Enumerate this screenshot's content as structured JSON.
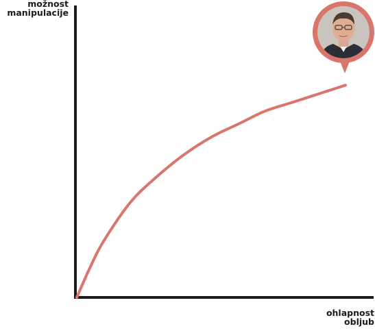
{
  "chart_data": {
    "type": "line",
    "title": "",
    "ylabel": [
      "možnost",
      "manipulacije"
    ],
    "xlabel": [
      "ohlapnost",
      "obljub"
    ],
    "xlim": [
      0,
      1
    ],
    "ylim": [
      0,
      1
    ],
    "grid": false,
    "x_ticks": [],
    "y_ticks": [],
    "series": [
      {
        "color": "#d9756a",
        "x": [
          0.0,
          0.05,
          0.1,
          0.2,
          0.3,
          0.4,
          0.5,
          0.6,
          0.7,
          0.8,
          0.9,
          1.0
        ],
        "y": [
          0.0,
          0.14,
          0.26,
          0.44,
          0.56,
          0.66,
          0.74,
          0.8,
          0.86,
          0.9,
          0.94,
          0.98
        ]
      }
    ],
    "annotation": {
      "type": "portrait-pin",
      "at_point": "end-of-series",
      "color": "#d9756a"
    }
  },
  "colors": {
    "axis": "#1a1a1a",
    "curve": "#d9756a",
    "pin": "#d9756a"
  }
}
